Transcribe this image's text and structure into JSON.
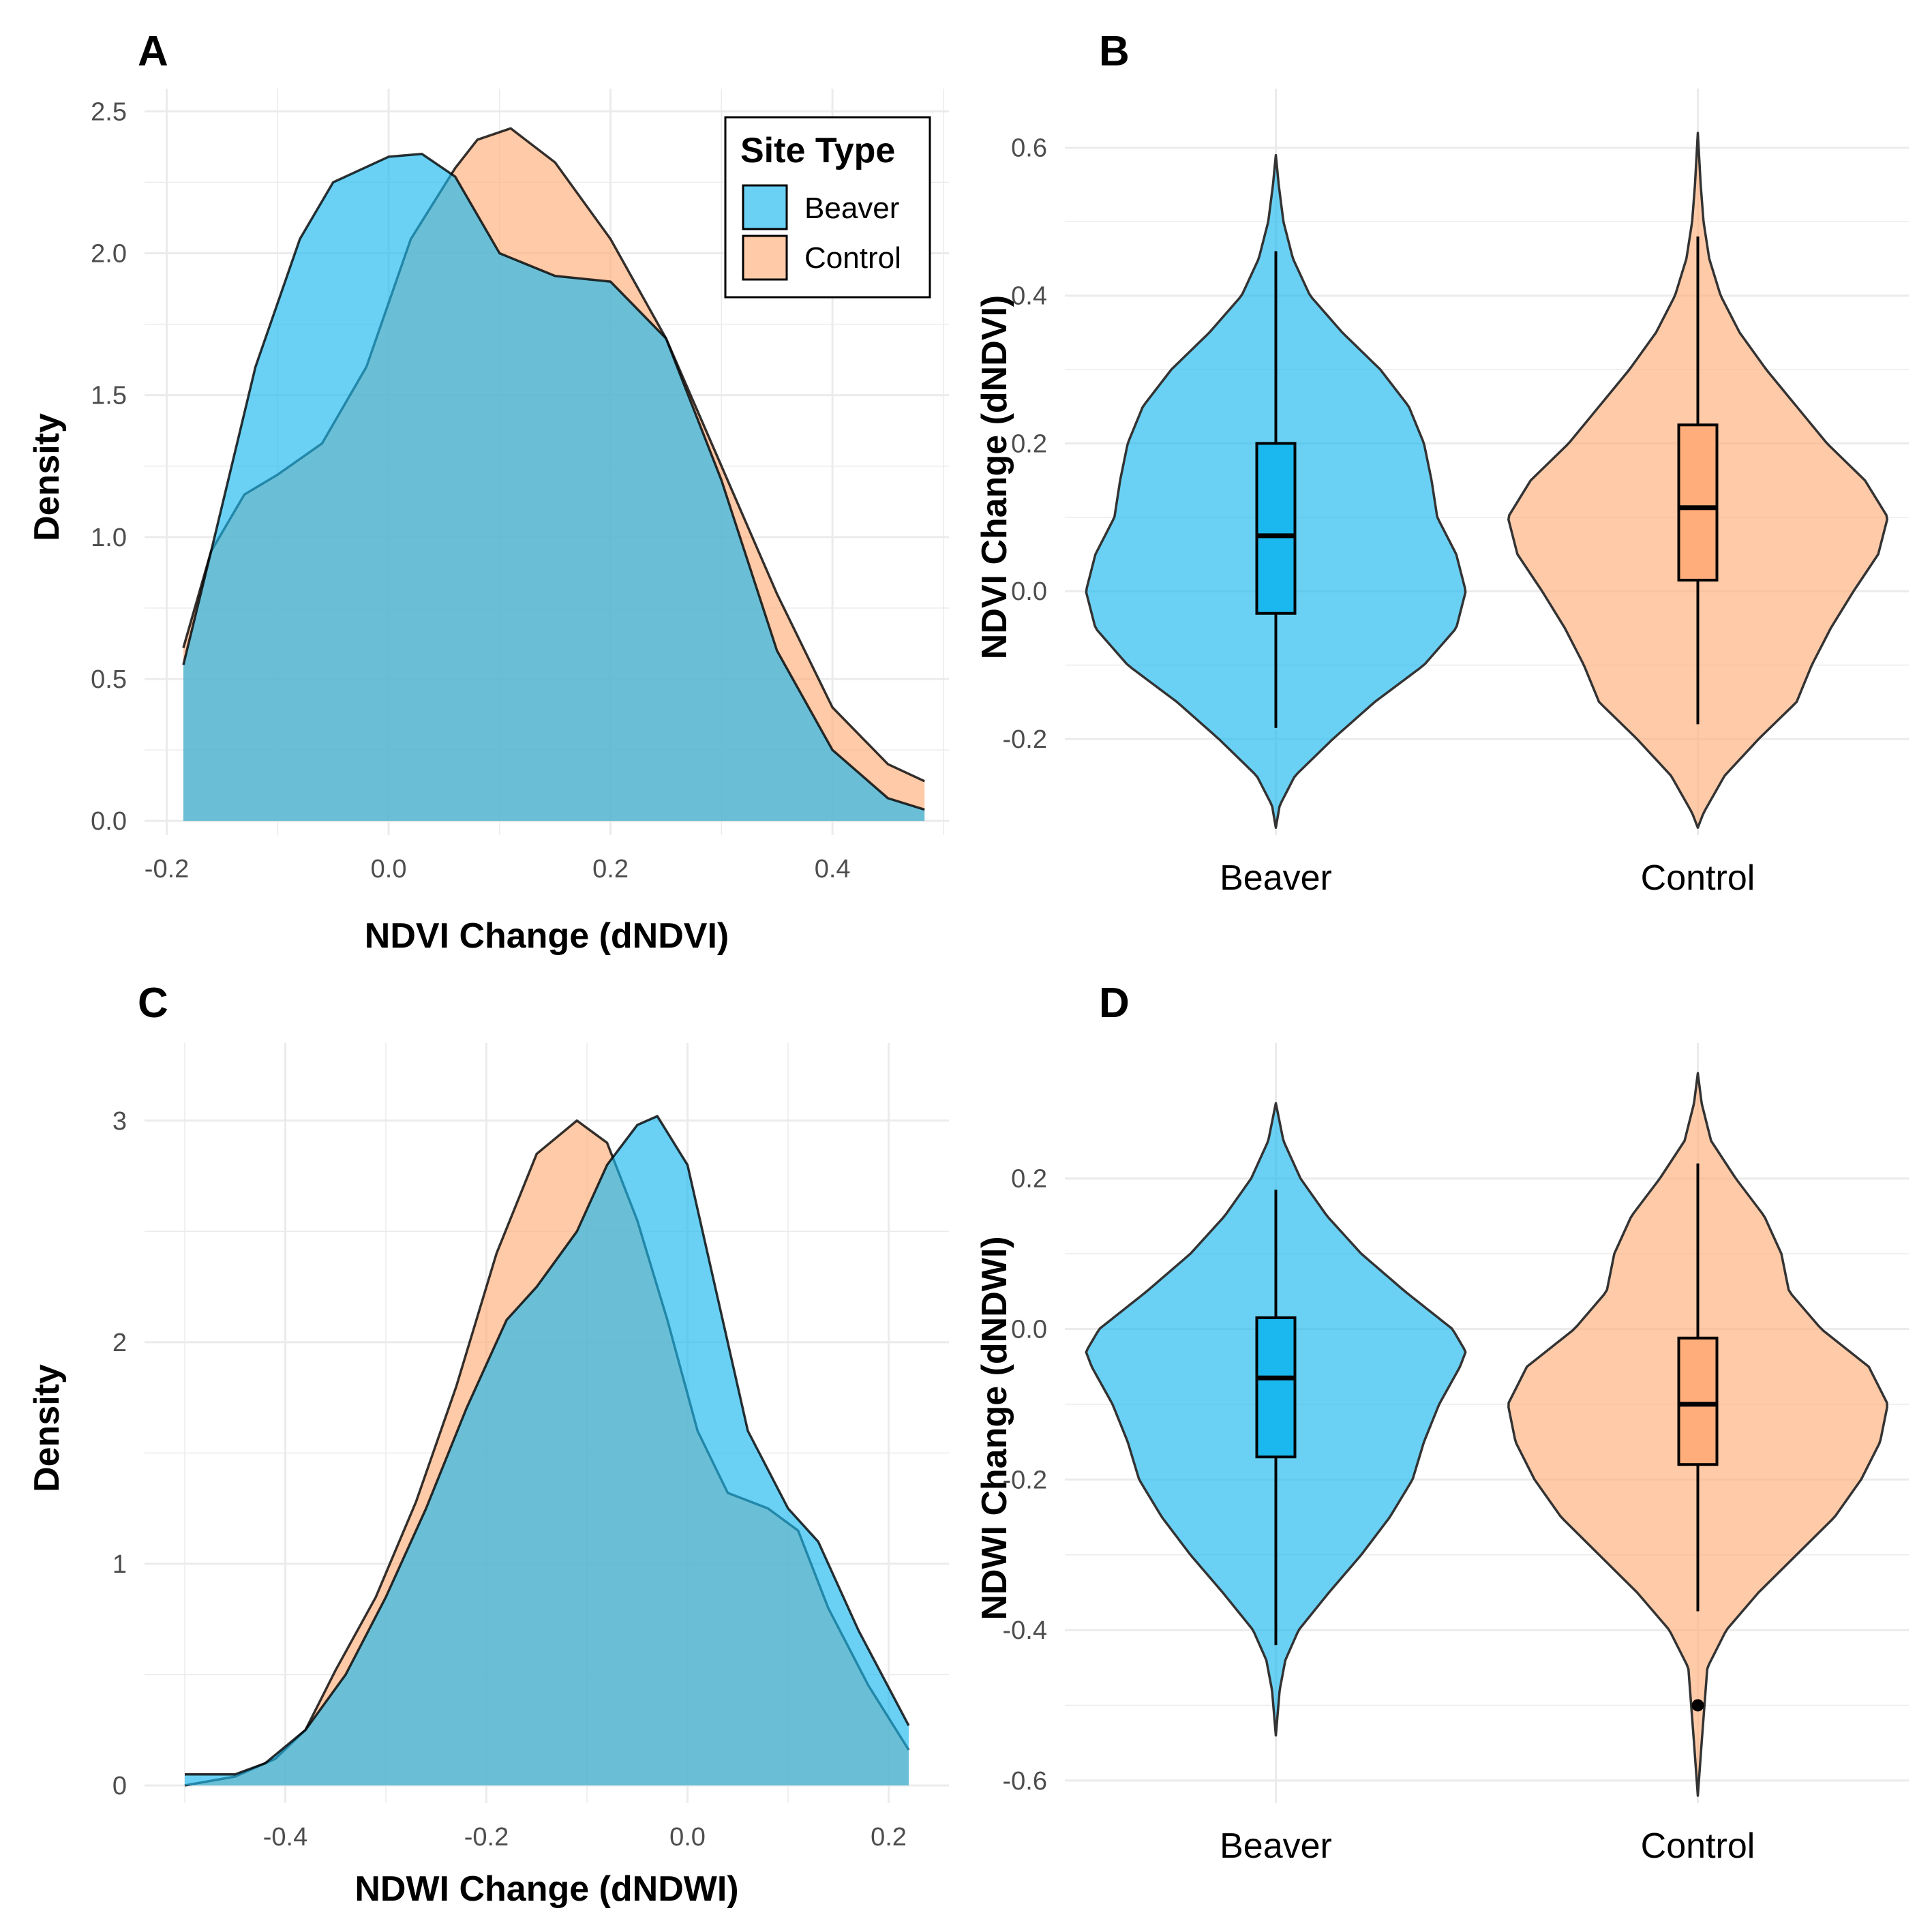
{
  "colors": {
    "beaver": "#1ab8ee",
    "control": "#ffad7a",
    "grid": "#ebebeb",
    "tick": "#4d4d4d"
  },
  "legend": {
    "title": "Site Type",
    "items": [
      "Beaver",
      "Control"
    ],
    "placement": "top-right"
  },
  "chart_data": [
    {
      "tag": "A",
      "type": "area",
      "kind": "density",
      "xlabel": "NDVI Change (dNDVI)",
      "ylabel": "Density",
      "xlim": [
        -0.22,
        0.505
      ],
      "ylim": [
        -0.05,
        2.58
      ],
      "xticks": [
        -0.2,
        0.0,
        0.2,
        0.4
      ],
      "xtick_labels": [
        "-0.2",
        "0.0",
        "0.2",
        "0.4"
      ],
      "yticks": [
        0.0,
        0.5,
        1.0,
        1.5,
        2.0,
        2.5
      ],
      "ytick_labels": [
        "0.0",
        "0.5",
        "1.0",
        "1.5",
        "2.0",
        "2.5"
      ],
      "series": [
        {
          "name": "Beaver",
          "x": [
            -0.185,
            -0.16,
            -0.12,
            -0.08,
            -0.05,
            0.0,
            0.03,
            0.06,
            0.1,
            0.15,
            0.2,
            0.25,
            0.3,
            0.35,
            0.4,
            0.45,
            0.483
          ],
          "y": [
            0.55,
            0.95,
            1.6,
            2.05,
            2.25,
            2.34,
            2.35,
            2.27,
            2.0,
            1.92,
            1.9,
            1.7,
            1.2,
            0.6,
            0.25,
            0.08,
            0.04
          ]
        },
        {
          "name": "Control",
          "x": [
            -0.185,
            -0.16,
            -0.13,
            -0.1,
            -0.06,
            -0.02,
            0.02,
            0.06,
            0.08,
            0.11,
            0.15,
            0.2,
            0.25,
            0.3,
            0.35,
            0.4,
            0.45,
            0.483
          ],
          "y": [
            0.61,
            0.95,
            1.15,
            1.22,
            1.33,
            1.6,
            2.05,
            2.3,
            2.4,
            2.44,
            2.32,
            2.05,
            1.7,
            1.25,
            0.8,
            0.4,
            0.2,
            0.14
          ]
        }
      ]
    },
    {
      "tag": "B",
      "type": "violin",
      "xlabel": "",
      "ylabel": "NDVI Change (dNDVI)",
      "categories": [
        "Beaver",
        "Control"
      ],
      "ylim": [
        -0.33,
        0.68
      ],
      "yticks": [
        -0.2,
        0.0,
        0.2,
        0.4,
        0.6
      ],
      "ytick_labels": [
        "-0.2",
        "0.0",
        "0.2",
        "0.4",
        "0.6"
      ],
      "violins": [
        {
          "name": "Beaver",
          "min": -0.32,
          "max": 0.59,
          "profile": [
            [
              -0.32,
              0.0
            ],
            [
              -0.29,
              0.02
            ],
            [
              -0.25,
              0.1
            ],
            [
              -0.2,
              0.3
            ],
            [
              -0.15,
              0.52
            ],
            [
              -0.1,
              0.78
            ],
            [
              -0.05,
              0.95
            ],
            [
              0.0,
              1.0
            ],
            [
              0.05,
              0.95
            ],
            [
              0.1,
              0.85
            ],
            [
              0.15,
              0.82
            ],
            [
              0.2,
              0.78
            ],
            [
              0.25,
              0.7
            ],
            [
              0.3,
              0.55
            ],
            [
              0.35,
              0.35
            ],
            [
              0.4,
              0.18
            ],
            [
              0.45,
              0.09
            ],
            [
              0.5,
              0.04
            ],
            [
              0.55,
              0.015
            ],
            [
              0.59,
              0.0
            ]
          ],
          "box": {
            "q1": -0.03,
            "median": 0.075,
            "q3": 0.2,
            "whisker_low": -0.185,
            "whisker_high": 0.46
          }
        },
        {
          "name": "Control",
          "min": -0.32,
          "max": 0.62,
          "profile": [
            [
              -0.32,
              0.0
            ],
            [
              -0.3,
              0.03
            ],
            [
              -0.25,
              0.14
            ],
            [
              -0.2,
              0.32
            ],
            [
              -0.15,
              0.52
            ],
            [
              -0.1,
              0.6
            ],
            [
              -0.05,
              0.7
            ],
            [
              0.0,
              0.82
            ],
            [
              0.05,
              0.95
            ],
            [
              0.1,
              1.0
            ],
            [
              0.15,
              0.88
            ],
            [
              0.2,
              0.68
            ],
            [
              0.25,
              0.52
            ],
            [
              0.3,
              0.36
            ],
            [
              0.35,
              0.22
            ],
            [
              0.4,
              0.12
            ],
            [
              0.45,
              0.06
            ],
            [
              0.5,
              0.03
            ],
            [
              0.55,
              0.015
            ],
            [
              0.62,
              0.0
            ]
          ],
          "box": {
            "q1": 0.015,
            "median": 0.113,
            "q3": 0.225,
            "whisker_low": -0.18,
            "whisker_high": 0.48
          }
        }
      ]
    },
    {
      "tag": "C",
      "type": "area",
      "kind": "density",
      "xlabel": "NDWI Change (dNDWI)",
      "ylabel": "Density",
      "xlim": [
        -0.54,
        0.26
      ],
      "ylim": [
        -0.08,
        3.35
      ],
      "xticks": [
        -0.4,
        -0.2,
        0.0,
        0.2
      ],
      "xtick_labels": [
        "-0.4",
        "-0.2",
        "0.0",
        "0.2"
      ],
      "yticks": [
        0,
        1,
        2,
        3
      ],
      "ytick_labels": [
        "0",
        "1",
        "2",
        "3"
      ],
      "series": [
        {
          "name": "Beaver",
          "x": [
            -0.5,
            -0.45,
            -0.42,
            -0.38,
            -0.34,
            -0.3,
            -0.26,
            -0.22,
            -0.18,
            -0.15,
            -0.11,
            -0.08,
            -0.05,
            -0.03,
            0.0,
            0.03,
            0.06,
            0.1,
            0.13,
            0.17,
            0.22
          ],
          "y": [
            0.05,
            0.05,
            0.1,
            0.25,
            0.5,
            0.85,
            1.25,
            1.7,
            2.1,
            2.25,
            2.5,
            2.8,
            2.98,
            3.02,
            2.8,
            2.2,
            1.6,
            1.25,
            1.1,
            0.7,
            0.27
          ]
        },
        {
          "name": "Control",
          "x": [
            -0.5,
            -0.45,
            -0.41,
            -0.38,
            -0.35,
            -0.31,
            -0.27,
            -0.23,
            -0.19,
            -0.15,
            -0.11,
            -0.08,
            -0.05,
            -0.02,
            0.01,
            0.04,
            0.08,
            0.11,
            0.14,
            0.18,
            0.22
          ],
          "y": [
            0.0,
            0.04,
            0.12,
            0.25,
            0.52,
            0.85,
            1.28,
            1.8,
            2.4,
            2.85,
            3.0,
            2.9,
            2.55,
            2.1,
            1.6,
            1.32,
            1.25,
            1.15,
            0.8,
            0.45,
            0.16
          ]
        }
      ]
    },
    {
      "tag": "D",
      "type": "violin",
      "xlabel": "",
      "ylabel": "NDWI Change (dNDWI)",
      "categories": [
        "Beaver",
        "Control"
      ],
      "ylim": [
        -0.63,
        0.38
      ],
      "yticks": [
        -0.6,
        -0.4,
        -0.2,
        0.0,
        0.2
      ],
      "ytick_labels": [
        "-0.6",
        "-0.4",
        "-0.2",
        "0.0",
        "0.2"
      ],
      "violins": [
        {
          "name": "Beaver",
          "min": -0.54,
          "max": 0.3,
          "profile": [
            [
              -0.54,
              0.0
            ],
            [
              -0.48,
              0.02
            ],
            [
              -0.44,
              0.05
            ],
            [
              -0.4,
              0.12
            ],
            [
              -0.35,
              0.28
            ],
            [
              -0.3,
              0.45
            ],
            [
              -0.25,
              0.6
            ],
            [
              -0.2,
              0.72
            ],
            [
              -0.15,
              0.78
            ],
            [
              -0.1,
              0.86
            ],
            [
              -0.05,
              0.97
            ],
            [
              -0.03,
              1.0
            ],
            [
              0.0,
              0.93
            ],
            [
              0.05,
              0.68
            ],
            [
              0.1,
              0.45
            ],
            [
              0.15,
              0.27
            ],
            [
              0.2,
              0.13
            ],
            [
              0.25,
              0.04
            ],
            [
              0.3,
              0.0
            ]
          ],
          "box": {
            "q1": -0.17,
            "median": -0.065,
            "q3": 0.015,
            "whisker_low": -0.42,
            "whisker_high": 0.185
          }
        },
        {
          "name": "Control",
          "min": -0.62,
          "max": 0.34,
          "profile": [
            [
              -0.62,
              0.0
            ],
            [
              -0.55,
              0.02
            ],
            [
              -0.45,
              0.05
            ],
            [
              -0.4,
              0.15
            ],
            [
              -0.35,
              0.32
            ],
            [
              -0.3,
              0.52
            ],
            [
              -0.25,
              0.72
            ],
            [
              -0.2,
              0.86
            ],
            [
              -0.15,
              0.96
            ],
            [
              -0.1,
              1.0
            ],
            [
              -0.05,
              0.9
            ],
            [
              0.0,
              0.65
            ],
            [
              0.05,
              0.48
            ],
            [
              0.1,
              0.44
            ],
            [
              0.15,
              0.35
            ],
            [
              0.2,
              0.2
            ],
            [
              0.25,
              0.07
            ],
            [
              0.3,
              0.02
            ],
            [
              0.34,
              0.0
            ]
          ],
          "box": {
            "q1": -0.18,
            "median": -0.1,
            "q3": -0.012,
            "whisker_low": -0.375,
            "whisker_high": 0.22
          },
          "outliers": [
            -0.5
          ]
        }
      ]
    }
  ]
}
